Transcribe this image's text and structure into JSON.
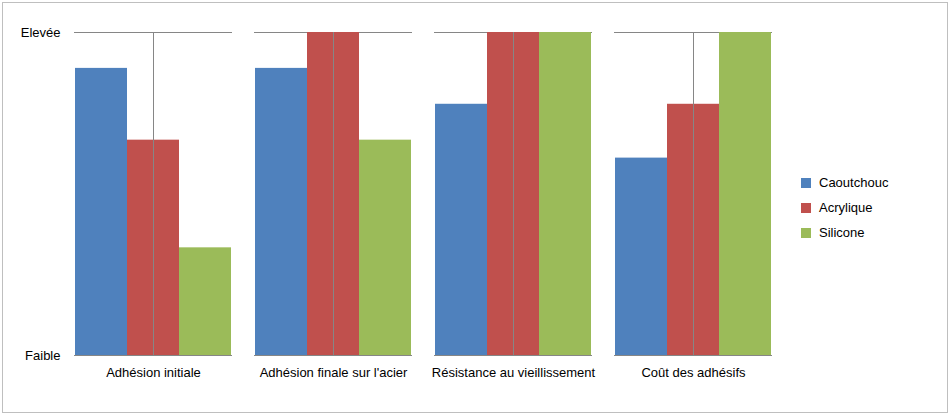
{
  "chart_data": {
    "type": "bar",
    "categories": [
      "Adhésion initiale",
      "Adhésion finale sur l'acier",
      "Résistance au vieillissement",
      "Coût des adhésifs"
    ],
    "series": [
      {
        "name": "Caoutchouc",
        "color": "#4f81bd",
        "values": [
          8,
          8,
          7,
          5.5
        ]
      },
      {
        "name": "Acrylique",
        "color": "#c0504d",
        "values": [
          6,
          9,
          9,
          7
        ]
      },
      {
        "name": "Silicone",
        "color": "#9bbb59",
        "values": [
          3,
          6,
          9,
          9
        ]
      }
    ],
    "ylim": [
      0,
      9
    ],
    "yticks": [
      {
        "value": 0,
        "label": "Faible"
      },
      {
        "value": 9,
        "label": "Elevée"
      }
    ],
    "grid": true,
    "legend": "right"
  }
}
